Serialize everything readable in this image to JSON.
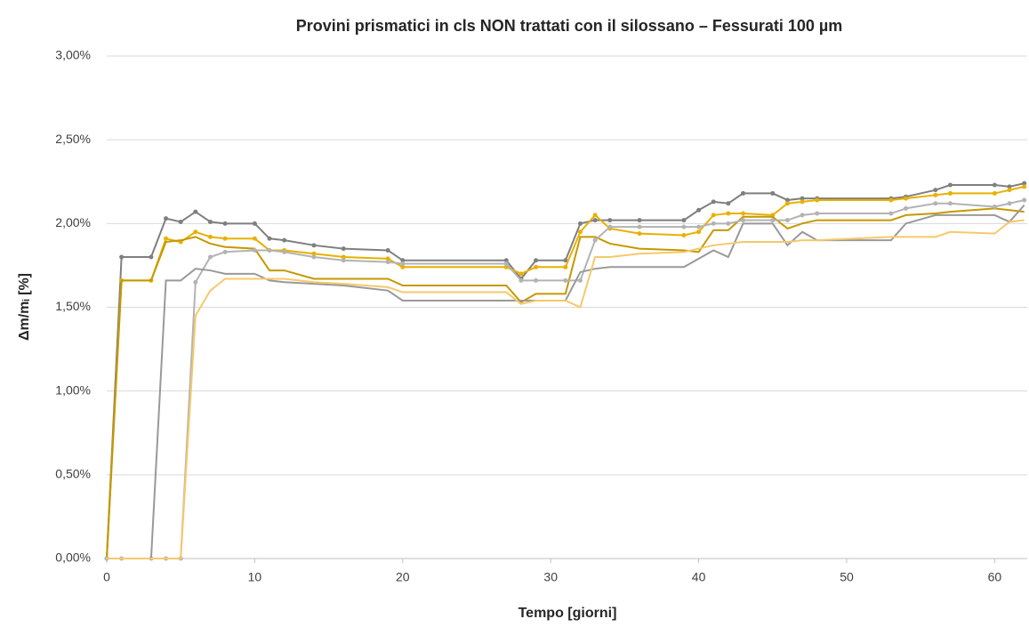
{
  "chart_data": {
    "type": "line",
    "title": "Provini prismatici in cls NON trattati con il silossano – Fessurati 100 µm",
    "x_label": "Tempo [giorni]",
    "y_label": "Δm/mᵢ [%]",
    "x": [
      0,
      1,
      3,
      4,
      5,
      6,
      7,
      8,
      10,
      11,
      12,
      14,
      16,
      19,
      20,
      27,
      28,
      29,
      31,
      32,
      33,
      34,
      36,
      39,
      40,
      41,
      42,
      43,
      45,
      46,
      47,
      48,
      53,
      54,
      56,
      57,
      60,
      61,
      62
    ],
    "series": [
      {
        "color": "#7f7f7f",
        "markers": true,
        "values": [
          0,
          1.8,
          1.8,
          2.03,
          2.01,
          2.07,
          2.01,
          2.0,
          2.0,
          1.91,
          1.9,
          1.87,
          1.85,
          1.84,
          1.78,
          1.78,
          1.67,
          1.78,
          1.78,
          2.0,
          2.02,
          2.02,
          2.02,
          2.02,
          2.08,
          2.13,
          2.12,
          2.18,
          2.18,
          2.14,
          2.15,
          2.15,
          2.15,
          2.16,
          2.2,
          2.23,
          2.23,
          2.22,
          2.24
        ]
      },
      {
        "color": "#e8b000",
        "markers": true,
        "values": [
          0,
          1.66,
          1.66,
          1.91,
          1.89,
          1.95,
          1.92,
          1.91,
          1.91,
          1.84,
          1.84,
          1.82,
          1.8,
          1.79,
          1.74,
          1.74,
          1.7,
          1.74,
          1.74,
          1.95,
          2.05,
          1.97,
          1.94,
          1.93,
          1.95,
          2.05,
          2.06,
          2.06,
          2.05,
          2.12,
          2.13,
          2.14,
          2.14,
          2.15,
          2.17,
          2.18,
          2.18,
          2.2,
          2.22
        ]
      },
      {
        "color": "#c59800",
        "markers": false,
        "values": [
          0,
          1.66,
          1.66,
          1.89,
          1.9,
          1.92,
          1.88,
          1.86,
          1.85,
          1.72,
          1.72,
          1.67,
          1.67,
          1.67,
          1.63,
          1.63,
          1.53,
          1.58,
          1.58,
          1.92,
          1.92,
          1.88,
          1.85,
          1.84,
          1.83,
          1.96,
          1.96,
          2.04,
          2.04,
          1.97,
          2.0,
          2.02,
          2.02,
          2.05,
          2.06,
          2.07,
          2.09,
          2.08,
          2.07
        ]
      },
      {
        "color": "#b3b3b3",
        "markers": true,
        "values": [
          0,
          0,
          0,
          0,
          0,
          1.65,
          1.8,
          1.83,
          1.84,
          1.84,
          1.83,
          1.8,
          1.78,
          1.77,
          1.76,
          1.76,
          1.66,
          1.66,
          1.66,
          1.66,
          1.9,
          1.98,
          1.98,
          1.98,
          1.98,
          2.0,
          2.0,
          2.02,
          2.02,
          2.02,
          2.05,
          2.06,
          2.06,
          2.09,
          2.12,
          2.12,
          2.1,
          2.12,
          2.14
        ]
      },
      {
        "color": "#999999",
        "markers": false,
        "values": [
          0,
          0,
          0,
          1.66,
          1.66,
          1.73,
          1.72,
          1.7,
          1.7,
          1.66,
          1.65,
          1.64,
          1.63,
          1.6,
          1.54,
          1.54,
          1.54,
          1.54,
          1.54,
          1.71,
          1.73,
          1.74,
          1.74,
          1.74,
          1.79,
          1.84,
          1.8,
          2.0,
          2.0,
          1.87,
          1.95,
          1.9,
          1.9,
          2.0,
          2.05,
          2.05,
          2.05,
          2.01,
          2.11
        ]
      },
      {
        "color": "#f5c96a",
        "markers": false,
        "values": [
          0,
          0,
          0,
          0,
          0,
          1.45,
          1.6,
          1.67,
          1.67,
          1.67,
          1.67,
          1.65,
          1.64,
          1.62,
          1.59,
          1.59,
          1.52,
          1.54,
          1.54,
          1.5,
          1.8,
          1.8,
          1.82,
          1.83,
          1.85,
          1.87,
          1.88,
          1.89,
          1.89,
          1.89,
          1.9,
          1.9,
          1.92,
          1.92,
          1.92,
          1.95,
          1.94,
          2.01,
          2.02
        ]
      }
    ],
    "xlim": [
      0,
      62.2
    ],
    "xticks": [
      0,
      10,
      20,
      30,
      40,
      50,
      60
    ],
    "ylim": [
      0,
      3
    ],
    "yticks": [
      {
        "value": 0,
        "label": "0,00%"
      },
      {
        "value": 0.5,
        "label": "0,50%"
      },
      {
        "value": 1,
        "label": "1,00%"
      },
      {
        "value": 1.5,
        "label": "1,50%"
      },
      {
        "value": 2,
        "label": "2,00%"
      },
      {
        "value": 2.5,
        "label": "2,50%"
      },
      {
        "value": 3,
        "label": "3,00%"
      }
    ],
    "grid": true
  }
}
